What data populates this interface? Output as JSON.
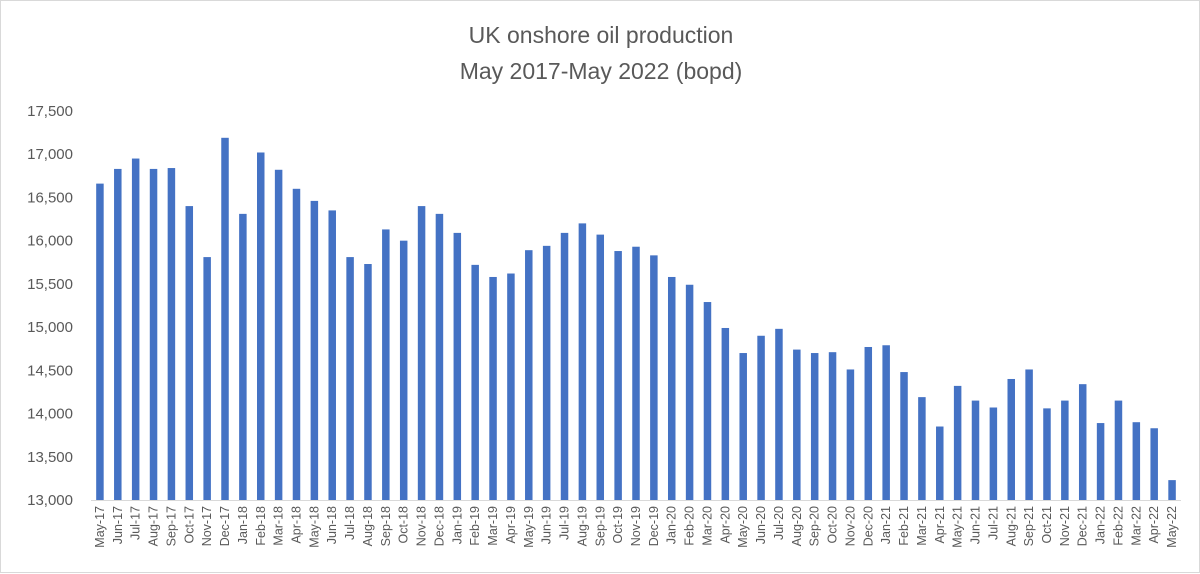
{
  "chart_data": {
    "type": "bar",
    "title": "UK onshore oil production",
    "subtitle": "May 2017-May 2022 (bopd)",
    "xlabel": "",
    "ylabel": "",
    "ylim": [
      13000,
      17500
    ],
    "yticks": [
      13000,
      13500,
      14000,
      14500,
      15000,
      15500,
      16000,
      16500,
      17000,
      17500
    ],
    "ytick_labels": [
      "13,000",
      "13,500",
      "14,000",
      "14,500",
      "15,000",
      "15,500",
      "16,000",
      "16,500",
      "17,000",
      "17,500"
    ],
    "grid": false,
    "legend": "none",
    "bar_color": "#4472c4",
    "categories": [
      "May-17",
      "Jun-17",
      "Jul-17",
      "Aug-17",
      "Sep-17",
      "Oct-17",
      "Nov-17",
      "Dec-17",
      "Jan-18",
      "Feb-18",
      "Mar-18",
      "Apr-18",
      "May-18",
      "Jun-18",
      "Jul-18",
      "Aug-18",
      "Sep-18",
      "Oct-18",
      "Nov-18",
      "Dec-18",
      "Jan-19",
      "Feb-19",
      "Mar-19",
      "Apr-19",
      "May-19",
      "Jun-19",
      "Jul-19",
      "Aug-19",
      "Sep-19",
      "Oct-19",
      "Nov-19",
      "Dec-19",
      "Jan-20",
      "Feb-20",
      "Mar-20",
      "Apr-20",
      "May-20",
      "Jun-20",
      "Jul-20",
      "Aug-20",
      "Sep-20",
      "Oct-20",
      "Nov-20",
      "Dec-20",
      "Jan-21",
      "Feb-21",
      "Mar-21",
      "Apr-21",
      "May-21",
      "Jun-21",
      "Jul-21",
      "Aug-21",
      "Sep-21",
      "Oct-21",
      "Nov-21",
      "Dec-21",
      "Jan-22",
      "Feb-22",
      "Mar-22",
      "Apr-22",
      "May-22"
    ],
    "values": [
      16660,
      16830,
      16950,
      16830,
      16840,
      16400,
      15810,
      17190,
      16310,
      17020,
      16820,
      16600,
      16460,
      16350,
      15810,
      15730,
      16130,
      16000,
      16400,
      16310,
      16090,
      15720,
      15580,
      15620,
      15890,
      15940,
      16090,
      16200,
      16070,
      15880,
      15930,
      15830,
      15580,
      15490,
      15290,
      14990,
      14700,
      14900,
      14980,
      14740,
      14700,
      14710,
      14510,
      14770,
      14790,
      14480,
      14190,
      13850,
      14320,
      14150,
      14070,
      14400,
      14510,
      14060,
      14150,
      14340,
      13890,
      14150,
      13900,
      13830,
      13230
    ]
  }
}
